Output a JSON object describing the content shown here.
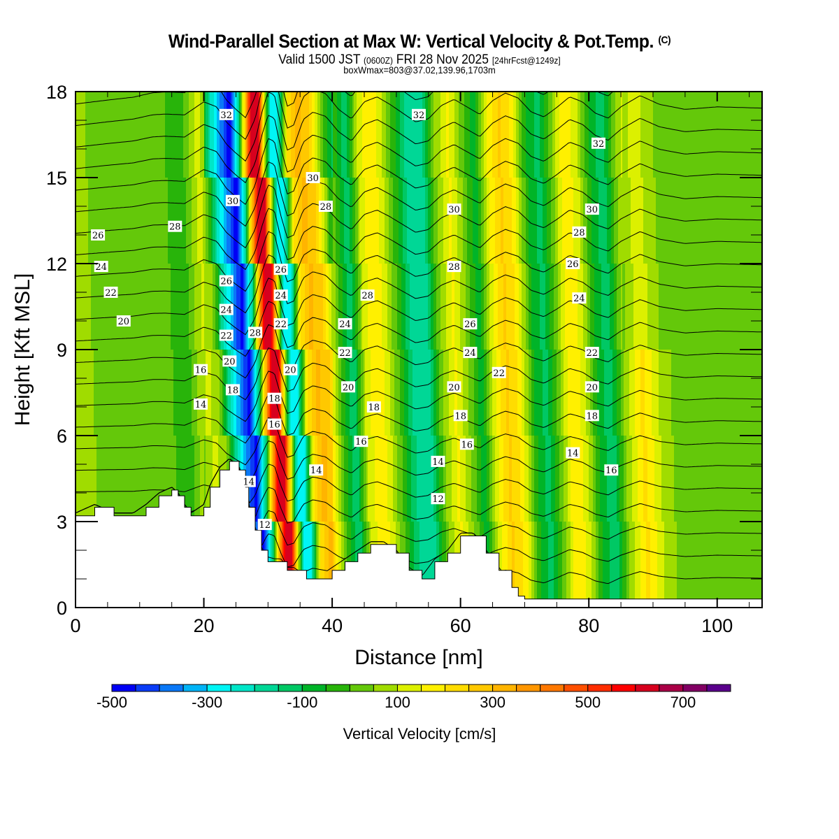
{
  "header": {
    "title": "Wind-Parallel Section at Max W: Vertical Velocity & Pot.Temp.",
    "copyright": "(C)",
    "valid_prefix": "Valid 1500 JST",
    "valid_utc": "(0600Z)",
    "valid_date": "FRI 28 Nov 2025",
    "forecast": "[24hrFcst@1249z]",
    "box_info": "boxWmax=803@37.02,139.96,1703m"
  },
  "chart_data": {
    "type": "heatmap",
    "title": "Wind-Parallel Section at Max W: Vertical Velocity & Pot.Temp.",
    "xlabel": "Distance [nm]",
    "ylabel": "Height [Kft MSL]",
    "xlim": [
      0,
      107
    ],
    "ylim": [
      0,
      18
    ],
    "xticks": [
      0,
      20,
      40,
      60,
      80,
      100
    ],
    "yticks": [
      0,
      3,
      6,
      9,
      12,
      15,
      18
    ],
    "colorbar": {
      "title": "Vertical Velocity [cm/s]",
      "min": -500,
      "max": 800,
      "step": 50,
      "tick_labels": [
        -500,
        -300,
        -100,
        100,
        300,
        500,
        700
      ],
      "colors": [
        "#0000f5",
        "#0a3cf7",
        "#0a78f7",
        "#00b4f7",
        "#00f5f5",
        "#00e6c8",
        "#00d796",
        "#00c864",
        "#00b428",
        "#28b40a",
        "#64c80a",
        "#a0dc00",
        "#dcf000",
        "#fff000",
        "#ffdc00",
        "#ffc800",
        "#ffb400",
        "#ff9600",
        "#ff7800",
        "#ff5000",
        "#ff2d00",
        "#ff0000",
        "#d7001e",
        "#aa0046",
        "#820064",
        "#5a008c"
      ]
    },
    "w_profile": {
      "x_nm": [
        0,
        5,
        9,
        12,
        14,
        17,
        20,
        22,
        23.5,
        25,
        26.5,
        28,
        29,
        30,
        31,
        32,
        33,
        34,
        35.5,
        37,
        39,
        41,
        43,
        45,
        47,
        49,
        51,
        53,
        55,
        57,
        59,
        61,
        63,
        65,
        67,
        69,
        71,
        73,
        75,
        77,
        79,
        81,
        83,
        85,
        88,
        91,
        95,
        100,
        107
      ],
      "w_cms": [
        60,
        40,
        20,
        40,
        20,
        -40,
        120,
        40,
        -200,
        -350,
        -480,
        -150,
        300,
        650,
        600,
        100,
        -300,
        -250,
        200,
        320,
        250,
        0,
        -150,
        120,
        200,
        80,
        -60,
        -200,
        -150,
        60,
        160,
        40,
        -80,
        140,
        260,
        180,
        -40,
        -120,
        30,
        200,
        120,
        -60,
        -140,
        40,
        220,
        80,
        0,
        40,
        20
      ]
    },
    "terrain_kft": {
      "x_nm": [
        0,
        3,
        6,
        9,
        11,
        13,
        15,
        16,
        17,
        18,
        20,
        21,
        22.5,
        24,
        25.5,
        26.5,
        27,
        28,
        29,
        30,
        31,
        32,
        33,
        34,
        36,
        38,
        40,
        42,
        44,
        46,
        48,
        50,
        52,
        54,
        56,
        58,
        60,
        62,
        64,
        66,
        68,
        69,
        70,
        75,
        85,
        95,
        107
      ],
      "z": [
        3.2,
        3.5,
        3.2,
        3.2,
        3.5,
        3.9,
        4.1,
        3.9,
        3.5,
        3.2,
        3.5,
        4.2,
        4.8,
        5.1,
        4.8,
        4.2,
        3.5,
        2.7,
        2.0,
        1.6,
        1.6,
        1.6,
        1.3,
        1.3,
        1.0,
        1.0,
        1.3,
        1.6,
        1.9,
        2.2,
        2.2,
        1.9,
        1.3,
        1.0,
        1.6,
        1.9,
        2.5,
        2.5,
        1.9,
        1.3,
        0.7,
        0.4,
        0.3,
        0.3,
        0.3,
        0.3,
        0.3
      ]
    },
    "theta_contours": {
      "levels_C": [
        12,
        14,
        16,
        18,
        20,
        22,
        24,
        26,
        28,
        30,
        32
      ],
      "labels": [
        {
          "text": "32",
          "x_nm": 23.5,
          "y_kft": 17.2
        },
        {
          "text": "32",
          "x_nm": 53.5,
          "y_kft": 17.2
        },
        {
          "text": "32",
          "x_nm": 81.5,
          "y_kft": 16.2
        },
        {
          "text": "30",
          "x_nm": 37,
          "y_kft": 15.0
        },
        {
          "text": "30",
          "x_nm": 24.5,
          "y_kft": 14.2
        },
        {
          "text": "28",
          "x_nm": 39,
          "y_kft": 14.0
        },
        {
          "text": "30",
          "x_nm": 59,
          "y_kft": 13.9
        },
        {
          "text": "30",
          "x_nm": 80.5,
          "y_kft": 13.9
        },
        {
          "text": "28",
          "x_nm": 15.5,
          "y_kft": 13.3
        },
        {
          "text": "26",
          "x_nm": 3.5,
          "y_kft": 13.0
        },
        {
          "text": "28",
          "x_nm": 78.5,
          "y_kft": 13.1
        },
        {
          "text": "24",
          "x_nm": 4,
          "y_kft": 11.9
        },
        {
          "text": "28",
          "x_nm": 59,
          "y_kft": 11.9
        },
        {
          "text": "26",
          "x_nm": 77.5,
          "y_kft": 12.0
        },
        {
          "text": "26",
          "x_nm": 32,
          "y_kft": 11.8
        },
        {
          "text": "22",
          "x_nm": 5.5,
          "y_kft": 11.0
        },
        {
          "text": "26",
          "x_nm": 23.5,
          "y_kft": 11.4
        },
        {
          "text": "28",
          "x_nm": 45.5,
          "y_kft": 10.9
        },
        {
          "text": "24",
          "x_nm": 32,
          "y_kft": 10.9
        },
        {
          "text": "24",
          "x_nm": 78.5,
          "y_kft": 10.8
        },
        {
          "text": "24",
          "x_nm": 23.5,
          "y_kft": 10.4
        },
        {
          "text": "20",
          "x_nm": 7.5,
          "y_kft": 10.0
        },
        {
          "text": "26",
          "x_nm": 61.5,
          "y_kft": 9.9
        },
        {
          "text": "24",
          "x_nm": 42,
          "y_kft": 9.9
        },
        {
          "text": "22",
          "x_nm": 32,
          "y_kft": 9.9
        },
        {
          "text": "22",
          "x_nm": 23.5,
          "y_kft": 9.5
        },
        {
          "text": "28",
          "x_nm": 28,
          "y_kft": 9.6
        },
        {
          "text": "22",
          "x_nm": 42,
          "y_kft": 8.9
        },
        {
          "text": "24",
          "x_nm": 61.5,
          "y_kft": 8.9
        },
        {
          "text": "22",
          "x_nm": 80.5,
          "y_kft": 8.9
        },
        {
          "text": "20",
          "x_nm": 24,
          "y_kft": 8.6
        },
        {
          "text": "16",
          "x_nm": 19.5,
          "y_kft": 8.3
        },
        {
          "text": "20",
          "x_nm": 33.5,
          "y_kft": 8.3
        },
        {
          "text": "22",
          "x_nm": 66,
          "y_kft": 8.2
        },
        {
          "text": "20",
          "x_nm": 42.5,
          "y_kft": 7.7
        },
        {
          "text": "20",
          "x_nm": 59,
          "y_kft": 7.7
        },
        {
          "text": "20",
          "x_nm": 80.5,
          "y_kft": 7.7
        },
        {
          "text": "18",
          "x_nm": 24.5,
          "y_kft": 7.6
        },
        {
          "text": "18",
          "x_nm": 31,
          "y_kft": 7.3
        },
        {
          "text": "14",
          "x_nm": 19.5,
          "y_kft": 7.1
        },
        {
          "text": "18",
          "x_nm": 46.5,
          "y_kft": 7.0
        },
        {
          "text": "18",
          "x_nm": 60,
          "y_kft": 6.7
        },
        {
          "text": "18",
          "x_nm": 80.5,
          "y_kft": 6.7
        },
        {
          "text": "16",
          "x_nm": 31,
          "y_kft": 6.4
        },
        {
          "text": "16",
          "x_nm": 44.5,
          "y_kft": 5.8
        },
        {
          "text": "16",
          "x_nm": 61,
          "y_kft": 5.7
        },
        {
          "text": "14",
          "x_nm": 77.5,
          "y_kft": 5.4
        },
        {
          "text": "14",
          "x_nm": 56.5,
          "y_kft": 5.1
        },
        {
          "text": "16",
          "x_nm": 83.5,
          "y_kft": 4.8
        },
        {
          "text": "14",
          "x_nm": 37.5,
          "y_kft": 4.8
        },
        {
          "text": "14",
          "x_nm": 27,
          "y_kft": 4.4
        },
        {
          "text": "12",
          "x_nm": 56.5,
          "y_kft": 3.8
        },
        {
          "text": "12",
          "x_nm": 29.5,
          "y_kft": 2.9
        }
      ]
    }
  }
}
